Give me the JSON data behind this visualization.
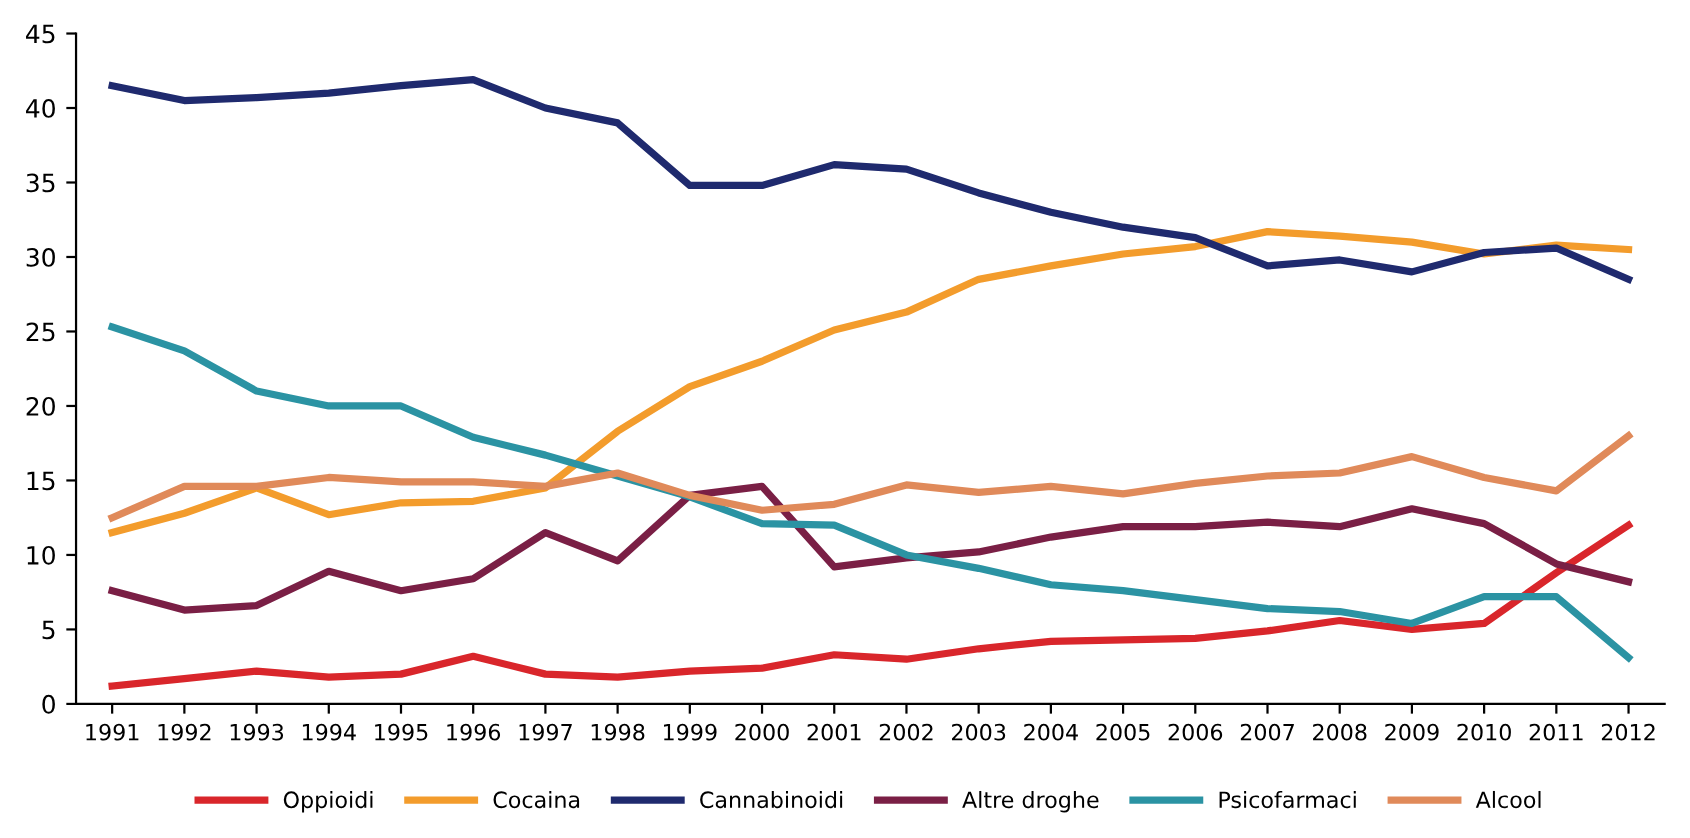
{
  "chart_data": {
    "type": "line",
    "categories": [
      "1991",
      "1992",
      "1993",
      "1994",
      "1995",
      "1996",
      "1997",
      "1998",
      "1999",
      "2000",
      "2001",
      "2002",
      "2003",
      "2004",
      "2005",
      "2006",
      "2007",
      "2008",
      "2009",
      "2010",
      "2011",
      "2012"
    ],
    "series": [
      {
        "name": "Oppioidi",
        "color": "#d9262b",
        "values": [
          1.2,
          1.7,
          2.2,
          1.8,
          2,
          3.2,
          2,
          1.8,
          2.2,
          2.4,
          3.3,
          3,
          3.7,
          4.2,
          4.3,
          4.4,
          4.9,
          5.6,
          5,
          5.4,
          8.8,
          12
        ]
      },
      {
        "name": "Cocaina",
        "color": "#f39c2c",
        "values": [
          11.5,
          12.8,
          14.5,
          12.7,
          13.5,
          13.6,
          14.5,
          18.3,
          21.3,
          23,
          25.1,
          26.3,
          28.5,
          29.4,
          30.2,
          30.7,
          31.7,
          31.4,
          31,
          30.2,
          30.8,
          30.5
        ]
      },
      {
        "name": "Cannabinoidi",
        "color": "#1f2a6e",
        "values": [
          41.5,
          40.5,
          40.7,
          41,
          41.5,
          41.9,
          40,
          39,
          34.8,
          34.8,
          36.2,
          35.9,
          34.3,
          33,
          32,
          31.3,
          29.4,
          29.8,
          29,
          30.3,
          30.6,
          28.5
        ]
      },
      {
        "name": "Altre droghe",
        "color": "#7a1f45",
        "values": [
          7.6,
          6.3,
          6.6,
          8.9,
          7.6,
          8.4,
          11.5,
          9.6,
          14,
          14.6,
          9.2,
          9.8,
          10.2,
          11.2,
          11.9,
          11.9,
          12.2,
          11.9,
          13.1,
          12.1,
          9.4,
          8.2
        ]
      },
      {
        "name": "Psicofarmaci",
        "color": "#2b93a3",
        "values": [
          25.3,
          23.7,
          21,
          20,
          20,
          17.9,
          16.7,
          15.3,
          13.9,
          12.1,
          12,
          10,
          9.1,
          8,
          7.6,
          7,
          6.4,
          6.2,
          5.4,
          7.2,
          7.2,
          3.1
        ]
      },
      {
        "name": "Alcool",
        "color": "#e08a5a",
        "values": [
          12.5,
          14.6,
          14.6,
          15.2,
          14.9,
          14.9,
          14.6,
          15.5,
          14,
          13,
          13.4,
          14.7,
          14.2,
          14.6,
          14.1,
          14.8,
          15.3,
          15.5,
          16.6,
          15.2,
          14.3,
          18
        ]
      }
    ],
    "ylim": [
      0,
      45
    ],
    "yticks": [
      0,
      5,
      10,
      15,
      20,
      25,
      30,
      35,
      40,
      45
    ],
    "grid": false,
    "legend": "bottom",
    "marker": "none",
    "line_style": "solid"
  }
}
